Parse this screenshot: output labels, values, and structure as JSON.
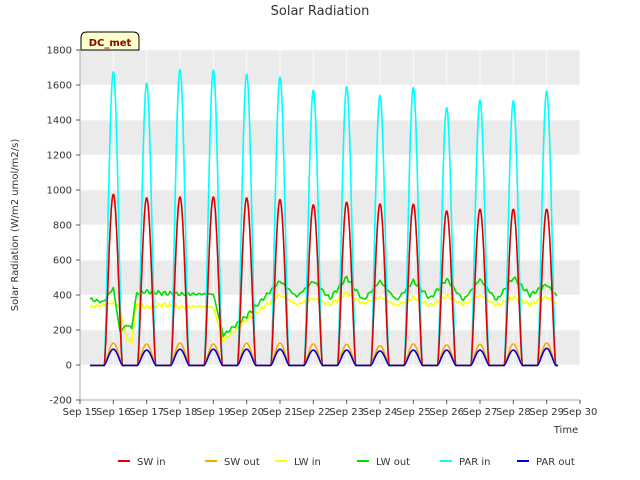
{
  "chart_data": {
    "type": "line",
    "title": "Solar Radiation",
    "xlabel": "Time",
    "ylabel": "Solar Radiation (W/m2 umol/m2/s)",
    "ylim": [
      -200,
      1800
    ],
    "yticks": [
      -200,
      0,
      200,
      400,
      600,
      800,
      1000,
      1200,
      1400,
      1600,
      1800
    ],
    "xlim": [
      15,
      30
    ],
    "xticks": [
      15,
      16,
      17,
      18,
      19,
      20,
      21,
      22,
      23,
      24,
      25,
      26,
      27,
      28,
      29,
      30
    ],
    "xtick_labels": [
      "Sep 15",
      "Sep 16",
      "Sep 17",
      "Sep 18",
      "Sep 19",
      "Sep 20",
      "Sep 21",
      "Sep 22",
      "Sep 23",
      "Sep 24",
      "Sep 25",
      "Sep 26",
      "Sep 27",
      "Sep 28",
      "Sep 29",
      "Sep 30"
    ],
    "days": [
      16,
      17,
      18,
      19,
      20,
      21,
      22,
      23,
      24,
      25,
      26,
      27,
      28,
      29
    ],
    "grid": true,
    "legend_position": "bottom",
    "annotation": "DC_met",
    "series": [
      {
        "name": "SW in",
        "color": "#dd0000",
        "kind": "diurnal",
        "peaks": [
          975,
          955,
          960,
          960,
          955,
          945,
          915,
          930,
          920,
          918,
          880,
          890,
          890,
          890
        ],
        "night": -2
      },
      {
        "name": "SW out",
        "color": "#ffa500",
        "kind": "diurnal",
        "peaks": [
          125,
          120,
          125,
          120,
          125,
          125,
          120,
          118,
          110,
          120,
          115,
          118,
          120,
          125
        ],
        "night": -2
      },
      {
        "name": "LW in",
        "color": "#ffff00",
        "kind": "daily_mean",
        "x": [
          15.3,
          16.0,
          16.2,
          16.4,
          16.55,
          16.7,
          17.0,
          17.5,
          18.0,
          18.5,
          19.0,
          19.3,
          20.0,
          21.0,
          21.5,
          22.0,
          22.5,
          23.0,
          23.5,
          24.0,
          24.5,
          25.0,
          25.5,
          26.0,
          26.5,
          27.0,
          27.5,
          28.0,
          28.5,
          29.0,
          29.3
        ],
        "values": [
          330,
          355,
          320,
          150,
          130,
          350,
          330,
          345,
          330,
          335,
          330,
          140,
          260,
          400,
          345,
          380,
          345,
          410,
          350,
          390,
          340,
          385,
          340,
          395,
          345,
          400,
          340,
          385,
          345,
          390,
          350
        ]
      },
      {
        "name": "LW out",
        "color": "#00dd00",
        "kind": "daily_mean",
        "x": [
          15.3,
          15.7,
          16.0,
          16.2,
          16.4,
          16.55,
          16.7,
          17.0,
          17.5,
          18.0,
          18.5,
          19.0,
          19.3,
          20.0,
          21.0,
          21.5,
          22.0,
          22.5,
          23.0,
          23.5,
          24.0,
          24.5,
          25.0,
          25.5,
          26.0,
          26.5,
          27.0,
          27.5,
          28.0,
          28.5,
          29.0,
          29.3
        ],
        "values": [
          375,
          360,
          440,
          190,
          230,
          210,
          410,
          420,
          410,
          405,
          405,
          405,
          170,
          280,
          480,
          390,
          480,
          380,
          500,
          370,
          480,
          370,
          480,
          380,
          490,
          370,
          490,
          370,
          500,
          400,
          460,
          395
        ]
      },
      {
        "name": "PAR in",
        "color": "#00ffff",
        "kind": "diurnal",
        "peaks": [
          1675,
          1610,
          1690,
          1685,
          1660,
          1645,
          1570,
          1590,
          1540,
          1585,
          1470,
          1515,
          1510,
          1565
        ],
        "night": -2
      },
      {
        "name": "PAR out",
        "color": "#0000cc",
        "kind": "diurnal",
        "peaks": [
          90,
          85,
          90,
          90,
          90,
          90,
          85,
          85,
          80,
          85,
          85,
          85,
          85,
          95
        ],
        "night": -2
      }
    ]
  }
}
